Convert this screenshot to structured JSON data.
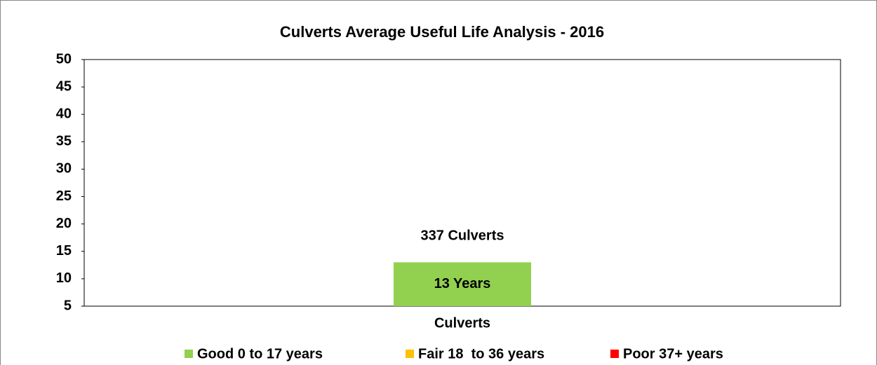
{
  "chart_data": {
    "type": "bar",
    "title": "Culverts Average Useful Life Analysis - 2016",
    "categories": [
      "Culverts"
    ],
    "series": [
      {
        "name": "Good 0 to 17 years",
        "color": "#92d050",
        "values": [
          13
        ],
        "value_labels": [
          "13 Years"
        ]
      },
      {
        "name": "Fair 18  to 36 years",
        "color": "#ffc000",
        "values": [
          null
        ]
      },
      {
        "name": "Poor 37+ years",
        "color": "#ff0000",
        "values": [
          null
        ]
      }
    ],
    "annotations": [
      "337 Culverts"
    ],
    "ylim": [
      5,
      50
    ],
    "yticks": [
      5,
      10,
      15,
      20,
      25,
      30,
      35,
      40,
      45,
      50
    ],
    "grid": false,
    "legend": "bottom"
  }
}
